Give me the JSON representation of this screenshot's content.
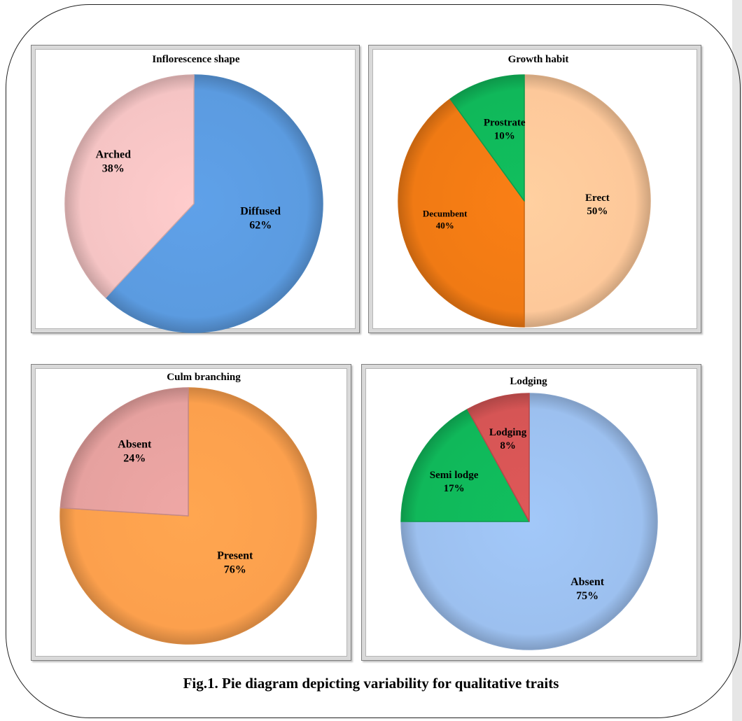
{
  "caption": "Fig.1. Pie diagram depicting variability for qualitative traits",
  "chart_data": [
    {
      "type": "pie",
      "title": "Inflorescence shape",
      "slices": [
        {
          "label": "Diffused",
          "value": 62,
          "display": "62%",
          "color": "#5b9be0"
        },
        {
          "label": "Arched",
          "value": 38,
          "display": "38%",
          "color": "#f5c4c4"
        }
      ],
      "start_angle_deg": 0
    },
    {
      "type": "pie",
      "title": "Growth habit",
      "slices": [
        {
          "label": "Erect",
          "value": 50,
          "display": "50%",
          "color": "#fdc89a"
        },
        {
          "label": "Decumbent",
          "value": 40,
          "display": "40%",
          "color": "#f07a14"
        },
        {
          "label": "Prostrate",
          "value": 10,
          "display": "10%",
          "color": "#10b85a"
        }
      ],
      "start_angle_deg": 0
    },
    {
      "type": "pie",
      "title": "Culm branching",
      "slices": [
        {
          "label": "Present",
          "value": 76,
          "display": "76%",
          "color": "#fca04d"
        },
        {
          "label": "Absent",
          "value": 24,
          "display": "24%",
          "color": "#e6a19f"
        }
      ],
      "start_angle_deg": 0
    },
    {
      "type": "pie",
      "title": "Lodging",
      "slices": [
        {
          "label": "Absent",
          "value": 75,
          "display": "75%",
          "color": "#9cc0ef"
        },
        {
          "label": "Semi lodge",
          "value": 17,
          "display": "17%",
          "color": "#10b85a"
        },
        {
          "label": "Lodging",
          "value": 8,
          "display": "8%",
          "color": "#d65555"
        }
      ],
      "start_angle_deg": 0
    }
  ]
}
